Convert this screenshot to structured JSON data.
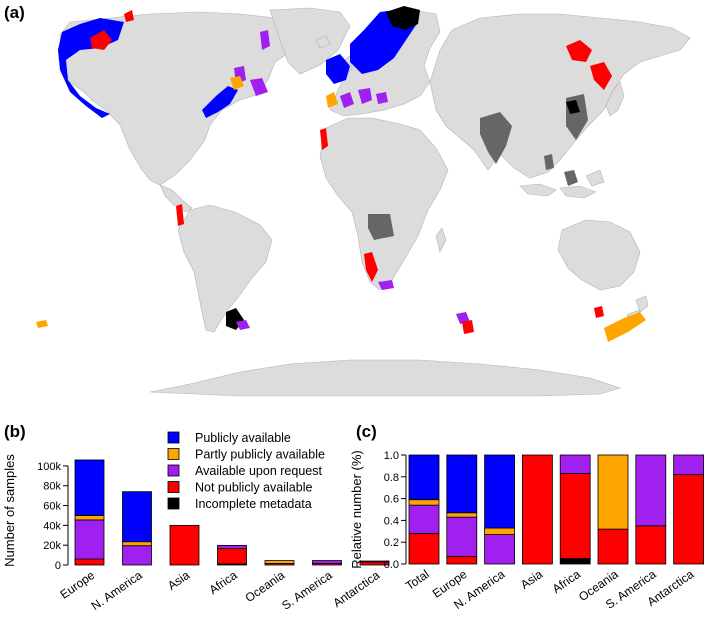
{
  "panels": {
    "a": "(a)",
    "b": "(b)",
    "c": "(c)"
  },
  "colors": {
    "land": "#dcdcdc",
    "no_data_country": "#666666"
  },
  "legend": [
    {
      "label": "Publicly available",
      "color": "#0000ff"
    },
    {
      "label": "Partly publicly available",
      "color": "#ffa500"
    },
    {
      "label": "Available upon request",
      "color": "#a020f0"
    },
    {
      "label": "Not publicly available",
      "color": "#ff0000"
    },
    {
      "label": "Incomplete metadata",
      "color": "#000000"
    }
  ],
  "chart_data": [
    {
      "panel": "(b)",
      "type": "bar",
      "stacked": true,
      "ylabel": "Number of samples",
      "ylim": [
        0,
        110000
      ],
      "yticks": [
        0,
        20000,
        40000,
        60000,
        80000,
        100000
      ],
      "ytick_labels": [
        "0",
        "20k",
        "40k",
        "60k",
        "80k",
        "100k"
      ],
      "categories": [
        "Europe",
        "N. America",
        "Asia",
        "Africa",
        "Oceania",
        "S. America",
        "Antarctica"
      ],
      "series": [
        {
          "name": "Incomplete metadata",
          "color": "#000000",
          "values": [
            0,
            0,
            0,
            1000,
            0,
            0,
            0
          ]
        },
        {
          "name": "Not publicly available",
          "color": "#ff0000",
          "values": [
            6000,
            0,
            40000,
            15500,
            1500,
            1500,
            3000
          ]
        },
        {
          "name": "Available upon request",
          "color": "#a020f0",
          "values": [
            39500,
            19500,
            0,
            3300,
            0,
            3000,
            1000
          ]
        },
        {
          "name": "Partly publicly available",
          "color": "#ffa500",
          "values": [
            4500,
            4000,
            0,
            0,
            3000,
            0,
            0
          ]
        },
        {
          "name": "Publicly available",
          "color": "#0000ff",
          "values": [
            56000,
            50500,
            0,
            0,
            0,
            0,
            0
          ]
        }
      ]
    },
    {
      "panel": "(c)",
      "type": "bar",
      "stacked": true,
      "ylabel": "Relative number (%)",
      "ylim": [
        0,
        1
      ],
      "yticks": [
        0,
        0.2,
        0.4,
        0.6,
        0.8,
        1.0
      ],
      "ytick_labels": [
        "0.0",
        "0.2",
        "0.4",
        "0.6",
        "0.8",
        "1.0"
      ],
      "categories": [
        "Total",
        "Europe",
        "N. America",
        "Asia",
        "Africa",
        "Oceania",
        "S. America",
        "Antarctica"
      ],
      "series": [
        {
          "name": "Incomplete metadata",
          "color": "#000000",
          "values": [
            0,
            0,
            0,
            0,
            0.05,
            0,
            0,
            0
          ]
        },
        {
          "name": "Not publicly available",
          "color": "#ff0000",
          "values": [
            0.28,
            0.07,
            0,
            1.0,
            0.78,
            0.32,
            0.35,
            0.82
          ]
        },
        {
          "name": "Available upon request",
          "color": "#a020f0",
          "values": [
            0.26,
            0.36,
            0.27,
            0,
            0.17,
            0,
            0.65,
            0.18
          ]
        },
        {
          "name": "Partly publicly available",
          "color": "#ffa500",
          "values": [
            0.05,
            0.04,
            0.06,
            0,
            0,
            0.68,
            0,
            0
          ]
        },
        {
          "name": "Publicly available",
          "color": "#0000ff",
          "values": [
            0.41,
            0.53,
            0.67,
            0,
            0,
            0,
            0,
            0
          ]
        }
      ]
    }
  ]
}
